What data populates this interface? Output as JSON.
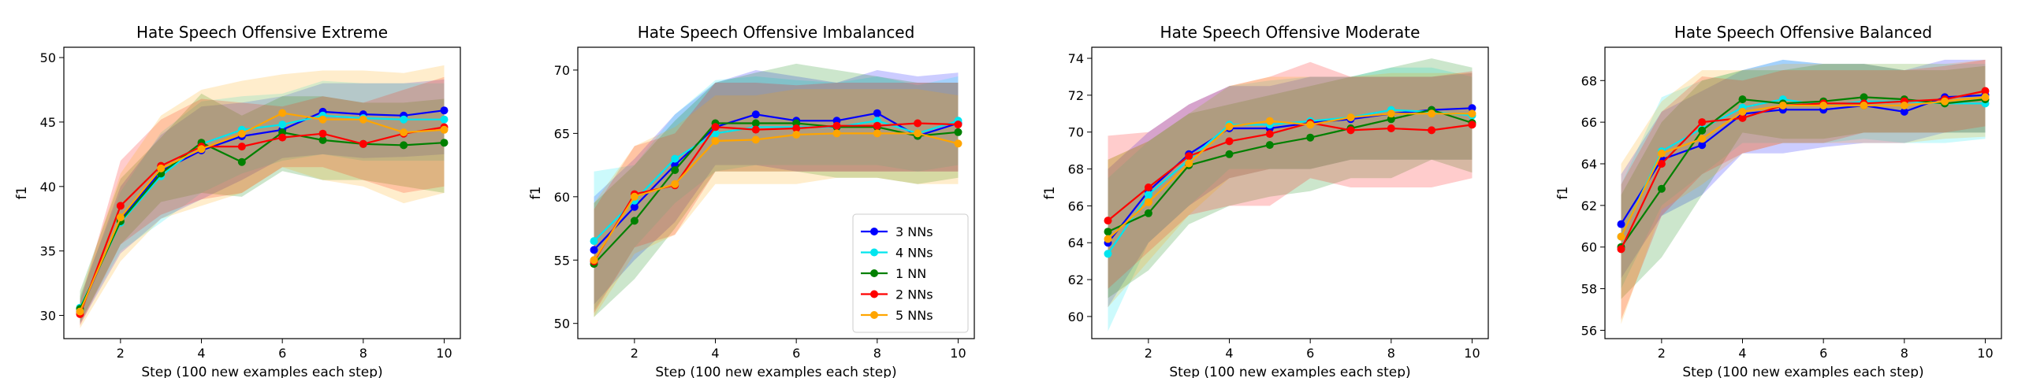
{
  "chart_data": [
    {
      "type": "line",
      "title": "Hate Speech Offensive Extreme",
      "xlabel": "Step (100 new examples each step)",
      "ylabel": "f1",
      "xlim": [
        0.6,
        10.4
      ],
      "ylim": [
        28.2,
        50.8
      ],
      "xticks": [
        2,
        4,
        6,
        8,
        10
      ],
      "yticks": [
        30,
        35,
        40,
        45,
        50
      ],
      "x": [
        1,
        2,
        3,
        4,
        5,
        6,
        7,
        8,
        9,
        10
      ],
      "series": [
        {
          "name": "3 NNs",
          "color": "#0000ff",
          "values": [
            30.3,
            37.5,
            41.2,
            42.8,
            43.9,
            44.4,
            45.8,
            45.6,
            45.5,
            45.9
          ],
          "lower": [
            29.3,
            34.8,
            37.5,
            39.0,
            40.5,
            42.2,
            42.5,
            42.2,
            42.3,
            42.5
          ],
          "upper": [
            31.3,
            40.0,
            44.0,
            46.2,
            46.5,
            47.0,
            48.0,
            48.0,
            48.0,
            48.3
          ]
        },
        {
          "name": "4 NNs",
          "color": "#00e5ee",
          "values": [
            30.6,
            37.2,
            40.8,
            43.3,
            44.4,
            44.8,
            45.5,
            45.3,
            45.2,
            45.2
          ],
          "lower": [
            29.5,
            35.0,
            37.2,
            39.5,
            41.0,
            42.0,
            42.5,
            42.0,
            42.0,
            42.0
          ],
          "upper": [
            31.5,
            39.6,
            44.2,
            46.6,
            47.0,
            47.2,
            48.2,
            48.0,
            48.0,
            48.0
          ]
        },
        {
          "name": "1 NN",
          "color": "#008000",
          "values": [
            30.5,
            37.3,
            41.0,
            43.4,
            41.9,
            44.2,
            43.6,
            43.3,
            43.2,
            43.4
          ],
          "lower": [
            29.4,
            35.5,
            38.8,
            39.5,
            39.2,
            41.2,
            40.5,
            40.5,
            40.0,
            39.5
          ],
          "upper": [
            31.9,
            40.6,
            43.8,
            47.2,
            45.5,
            47.0,
            47.0,
            46.5,
            46.5,
            46.8
          ]
        },
        {
          "name": "2 NNs",
          "color": "#ff0000",
          "values": [
            30.1,
            38.5,
            41.6,
            43.1,
            43.1,
            43.8,
            44.1,
            43.3,
            44.1,
            44.6
          ],
          "lower": [
            29.2,
            35.5,
            37.8,
            39.0,
            39.5,
            41.5,
            41.5,
            40.5,
            39.5,
            40.0
          ],
          "upper": [
            31.0,
            42.0,
            45.2,
            46.8,
            46.5,
            46.2,
            47.0,
            46.5,
            47.5,
            48.5
          ]
        },
        {
          "name": "5 NNs",
          "color": "#ffa500",
          "values": [
            30.3,
            37.6,
            41.4,
            42.9,
            44.1,
            45.7,
            45.2,
            45.2,
            44.2,
            44.4
          ],
          "lower": [
            29.0,
            34.2,
            37.5,
            38.5,
            39.5,
            41.5,
            40.5,
            40.0,
            38.7,
            39.5
          ],
          "upper": [
            31.5,
            41.0,
            45.5,
            47.5,
            48.2,
            48.7,
            49.0,
            49.0,
            48.8,
            49.4
          ]
        }
      ]
    },
    {
      "type": "line",
      "title": "Hate Speech Offensive Imbalanced",
      "xlabel": "Step (100 new examples each step)",
      "ylabel": "f1",
      "xlim": [
        0.6,
        10.4
      ],
      "ylim": [
        48.8,
        71.8
      ],
      "xticks": [
        2,
        4,
        6,
        8,
        10
      ],
      "yticks": [
        50,
        55,
        60,
        65,
        70
      ],
      "legend": "lower-right",
      "x": [
        1,
        2,
        3,
        4,
        5,
        6,
        7,
        8,
        9,
        10
      ],
      "series": [
        {
          "name": "3 NNs",
          "color": "#0000ff",
          "values": [
            55.8,
            59.2,
            62.5,
            65.5,
            66.5,
            66.0,
            66.0,
            66.6,
            64.8,
            65.8
          ],
          "lower": [
            51.5,
            55.0,
            58.0,
            62.5,
            62.5,
            62.0,
            62.0,
            62.0,
            62.0,
            62.0
          ],
          "upper": [
            60.0,
            63.0,
            66.5,
            69.0,
            70.0,
            69.5,
            69.0,
            70.0,
            69.5,
            69.8
          ]
        },
        {
          "name": "4 NNs",
          "color": "#00e5ee",
          "values": [
            56.5,
            59.7,
            63.0,
            65.0,
            65.5,
            65.5,
            65.5,
            66.0,
            65.0,
            66.0
          ],
          "lower": [
            51.0,
            56.0,
            59.5,
            62.0,
            62.5,
            62.5,
            62.5,
            62.5,
            62.0,
            62.5
          ],
          "upper": [
            62.0,
            62.5,
            66.5,
            69.2,
            69.5,
            69.2,
            69.0,
            69.5,
            68.8,
            69.5
          ]
        },
        {
          "name": "1 NN",
          "color": "#008000",
          "values": [
            54.7,
            58.1,
            62.1,
            65.8,
            65.8,
            65.8,
            65.5,
            65.5,
            64.8,
            65.1
          ],
          "lower": [
            50.5,
            53.5,
            57.5,
            62.0,
            62.0,
            62.0,
            61.5,
            61.5,
            61.0,
            61.5
          ],
          "upper": [
            59.5,
            62.5,
            66.0,
            69.0,
            69.8,
            70.5,
            70.0,
            69.5,
            69.0,
            69.0
          ]
        },
        {
          "name": "2 NNs",
          "color": "#ff0000",
          "values": [
            54.9,
            60.2,
            60.9,
            65.5,
            65.3,
            65.4,
            65.6,
            65.6,
            65.8,
            65.7
          ],
          "lower": [
            50.8,
            56.0,
            57.0,
            62.0,
            62.0,
            62.0,
            62.0,
            62.0,
            62.0,
            62.0
          ],
          "upper": [
            59.0,
            64.0,
            65.0,
            69.0,
            69.0,
            68.8,
            69.0,
            69.0,
            69.0,
            69.0
          ]
        },
        {
          "name": "5 NNs",
          "color": "#ffa500",
          "values": [
            55.0,
            60.0,
            61.0,
            64.4,
            64.5,
            64.9,
            65.0,
            65.0,
            65.0,
            64.2
          ],
          "lower": [
            50.5,
            55.5,
            57.0,
            61.0,
            61.0,
            61.0,
            61.5,
            61.5,
            61.0,
            61.0
          ],
          "upper": [
            59.5,
            64.0,
            65.5,
            68.0,
            68.0,
            68.5,
            68.5,
            68.5,
            68.5,
            68.0
          ]
        }
      ]
    },
    {
      "type": "line",
      "title": "Hate Speech Offensive Moderate",
      "xlabel": "Step (100 new examples each step)",
      "ylabel": "f1",
      "xlim": [
        0.6,
        10.4
      ],
      "ylim": [
        58.8,
        74.6
      ],
      "xticks": [
        2,
        4,
        6,
        8,
        10
      ],
      "yticks": [
        60,
        62,
        64,
        66,
        68,
        70,
        72,
        74
      ],
      "x": [
        1,
        2,
        3,
        4,
        5,
        6,
        7,
        8,
        9,
        10
      ],
      "series": [
        {
          "name": "3 NNs",
          "color": "#0000ff",
          "values": [
            64.0,
            66.8,
            68.8,
            70.2,
            70.2,
            70.5,
            70.7,
            71.0,
            71.2,
            71.3
          ],
          "lower": [
            60.5,
            64.0,
            66.0,
            67.5,
            68.0,
            68.0,
            68.5,
            68.5,
            68.5,
            68.5
          ],
          "upper": [
            68.0,
            70.0,
            71.5,
            72.5,
            72.5,
            73.0,
            73.0,
            73.0,
            73.0,
            73.2
          ]
        },
        {
          "name": "4 NNs",
          "color": "#00e5ee",
          "values": [
            63.4,
            66.6,
            68.5,
            70.4,
            70.4,
            70.6,
            70.8,
            71.2,
            71.1,
            70.9
          ],
          "lower": [
            59.2,
            64.0,
            66.0,
            68.0,
            68.0,
            68.0,
            68.5,
            68.5,
            68.5,
            68.5
          ],
          "upper": [
            67.5,
            69.5,
            71.0,
            72.5,
            72.8,
            73.0,
            73.0,
            73.5,
            73.5,
            73.0
          ]
        },
        {
          "name": "1 NN",
          "color": "#008000",
          "values": [
            64.6,
            65.6,
            68.2,
            68.8,
            69.3,
            69.7,
            70.2,
            70.7,
            71.2,
            70.5
          ],
          "lower": [
            61.0,
            62.5,
            65.0,
            66.0,
            66.5,
            66.8,
            67.5,
            67.5,
            68.5,
            67.8
          ],
          "upper": [
            68.5,
            69.5,
            71.0,
            71.5,
            72.0,
            72.5,
            73.0,
            73.5,
            74.0,
            73.5
          ]
        },
        {
          "name": "2 NNs",
          "color": "#ff0000",
          "values": [
            65.2,
            67.0,
            68.7,
            69.5,
            69.9,
            70.5,
            70.1,
            70.2,
            70.1,
            70.4
          ],
          "lower": [
            61.5,
            63.5,
            65.5,
            66.0,
            66.0,
            67.5,
            67.0,
            67.0,
            67.0,
            67.5
          ],
          "upper": [
            69.8,
            70.0,
            71.5,
            72.5,
            73.0,
            73.8,
            73.0,
            73.0,
            73.0,
            73.3
          ]
        },
        {
          "name": "5 NNs",
          "color": "#ffa500",
          "values": [
            64.2,
            66.2,
            68.3,
            70.3,
            70.6,
            70.4,
            70.8,
            71.0,
            71.0,
            71.0
          ],
          "lower": [
            60.5,
            63.0,
            65.5,
            67.5,
            68.0,
            68.0,
            68.5,
            68.5,
            68.5,
            68.5
          ],
          "upper": [
            68.5,
            69.5,
            71.0,
            72.5,
            73.0,
            73.0,
            73.0,
            73.2,
            73.2,
            73.2
          ]
        }
      ]
    },
    {
      "type": "line",
      "title": "Hate Speech Offensive Balanced",
      "xlabel": "Step (100 new examples each step)",
      "ylabel": "f1",
      "xlim": [
        0.6,
        10.4
      ],
      "ylim": [
        55.6,
        69.6
      ],
      "xticks": [
        2,
        4,
        6,
        8,
        10
      ],
      "yticks": [
        56,
        58,
        60,
        62,
        64,
        66,
        68
      ],
      "x": [
        1,
        2,
        3,
        4,
        5,
        6,
        7,
        8,
        9,
        10
      ],
      "series": [
        {
          "name": "3 NNs",
          "color": "#0000ff",
          "values": [
            61.1,
            64.2,
            64.9,
            66.4,
            66.6,
            66.6,
            66.8,
            66.5,
            67.2,
            67.3
          ],
          "lower": [
            58.5,
            61.5,
            62.5,
            64.5,
            64.5,
            64.8,
            65.0,
            65.0,
            65.5,
            65.5
          ],
          "upper": [
            63.5,
            66.5,
            67.5,
            68.5,
            69.0,
            68.8,
            68.8,
            68.5,
            69.0,
            69.0
          ]
        },
        {
          "name": "4 NNs",
          "color": "#00e5ee",
          "values": [
            60.5,
            64.6,
            65.7,
            66.7,
            67.1,
            66.8,
            67.0,
            67.0,
            66.9,
            66.9
          ],
          "lower": [
            58.0,
            62.0,
            63.5,
            65.0,
            65.0,
            65.0,
            65.2,
            65.0,
            65.0,
            65.2
          ],
          "upper": [
            63.0,
            67.2,
            68.0,
            68.5,
            69.0,
            68.8,
            68.8,
            68.8,
            68.8,
            68.8
          ]
        },
        {
          "name": "1 NN",
          "color": "#008000",
          "values": [
            60.0,
            62.8,
            65.6,
            67.1,
            66.9,
            67.0,
            67.2,
            67.1,
            66.9,
            67.1
          ],
          "lower": [
            57.5,
            59.5,
            62.5,
            65.5,
            65.2,
            65.2,
            65.5,
            65.5,
            65.5,
            65.5
          ],
          "upper": [
            62.5,
            66.0,
            68.0,
            68.5,
            68.5,
            68.8,
            68.8,
            68.5,
            68.5,
            68.7
          ]
        },
        {
          "name": "2 NNs",
          "color": "#ff0000",
          "values": [
            59.9,
            64.0,
            66.0,
            66.2,
            66.8,
            66.9,
            66.9,
            67.0,
            67.1,
            67.5
          ],
          "lower": [
            56.5,
            61.5,
            63.5,
            64.5,
            65.0,
            65.0,
            65.5,
            65.5,
            65.5,
            65.8
          ],
          "upper": [
            63.0,
            66.5,
            68.2,
            68.0,
            68.5,
            68.5,
            68.5,
            68.5,
            68.7,
            69.0
          ]
        },
        {
          "name": "5 NNs",
          "color": "#ffa500",
          "values": [
            60.5,
            64.5,
            65.2,
            66.5,
            66.8,
            66.8,
            66.8,
            66.8,
            67.0,
            67.2
          ],
          "lower": [
            56.3,
            61.8,
            63.0,
            64.5,
            65.0,
            65.0,
            65.0,
            65.0,
            65.2,
            65.3
          ],
          "upper": [
            64.0,
            67.0,
            68.5,
            68.5,
            68.8,
            68.8,
            68.8,
            68.8,
            68.8,
            69.0
          ]
        }
      ]
    }
  ]
}
